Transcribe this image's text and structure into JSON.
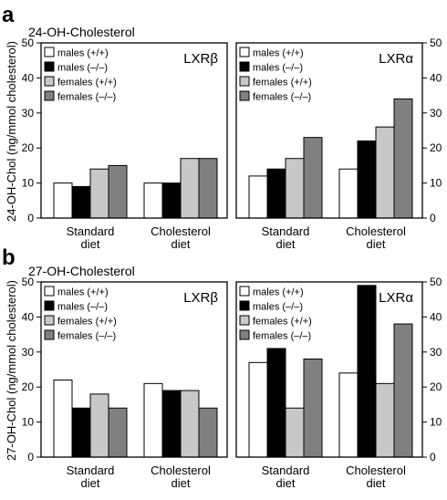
{
  "figure": {
    "panel_letters": [
      "a",
      "b"
    ],
    "titles": [
      "24-OH-Cholesterol",
      "27-OH-Cholesterol"
    ],
    "ylabels": [
      "24-OH-Chol (ng/mmol cholesterol)",
      "27-OH-Chol (ng/mmol cholesterol)"
    ]
  },
  "colors": {
    "males_wt": "#ffffff",
    "males_ko": "#000000",
    "females_wt": "#c8c8c8",
    "females_ko": "#808080"
  },
  "chart_data": [
    {
      "type": "bar",
      "title": "24-OH-Cholesterol",
      "ylabel": "24-OH-Chol (ng/mmol cholesterol)",
      "panel_label": "LXRβ",
      "ylim": [
        0,
        50
      ],
      "yticks": [
        0,
        10,
        20,
        30,
        40,
        50
      ],
      "legend_position": "top-left",
      "categories": [
        [
          "Standard",
          "diet"
        ],
        [
          "Cholesterol",
          "diet"
        ]
      ],
      "series": [
        {
          "name": "males (+/+)",
          "color": "#ffffff",
          "values": [
            10,
            10
          ]
        },
        {
          "name": "males (–/–)",
          "color": "#000000",
          "values": [
            9,
            10
          ]
        },
        {
          "name": "females (+/+)",
          "color": "#c8c8c8",
          "values": [
            14,
            17
          ]
        },
        {
          "name": "females (–/–)",
          "color": "#808080",
          "values": [
            15,
            17
          ]
        }
      ]
    },
    {
      "type": "bar",
      "title": "24-OH-Cholesterol",
      "panel_label": "LXRα",
      "ylim": [
        0,
        50
      ],
      "yticks": [
        0,
        10,
        20,
        30,
        40,
        50
      ],
      "legend_position": "top-left",
      "categories": [
        [
          "Standard",
          "diet"
        ],
        [
          "Cholesterol",
          "diet"
        ]
      ],
      "series": [
        {
          "name": "males (+/+)",
          "color": "#ffffff",
          "values": [
            12,
            14
          ]
        },
        {
          "name": "males (–/–)",
          "color": "#000000",
          "values": [
            14,
            22
          ]
        },
        {
          "name": "females (+/+)",
          "color": "#c8c8c8",
          "values": [
            17,
            26
          ]
        },
        {
          "name": "females (–/–)",
          "color": "#808080",
          "values": [
            23,
            34
          ]
        }
      ]
    },
    {
      "type": "bar",
      "title": "27-OH-Cholesterol",
      "ylabel": "27-OH-Chol (ng/mmol cholesterol)",
      "panel_label": "LXRβ",
      "ylim": [
        0,
        50
      ],
      "yticks": [
        0,
        10,
        20,
        30,
        40,
        50
      ],
      "legend_position": "top-left",
      "categories": [
        [
          "Standard",
          "diet"
        ],
        [
          "Cholesterol",
          "diet"
        ]
      ],
      "series": [
        {
          "name": "males (+/+)",
          "color": "#ffffff",
          "values": [
            22,
            21
          ]
        },
        {
          "name": "males (–/–)",
          "color": "#000000",
          "values": [
            14,
            19
          ]
        },
        {
          "name": "females (+/+)",
          "color": "#c8c8c8",
          "values": [
            18,
            19
          ]
        },
        {
          "name": "females (–/–)",
          "color": "#808080",
          "values": [
            14,
            14
          ]
        }
      ]
    },
    {
      "type": "bar",
      "title": "27-OH-Cholesterol",
      "panel_label": "LXRα",
      "ylim": [
        0,
        50
      ],
      "yticks": [
        0,
        10,
        20,
        30,
        40,
        50
      ],
      "legend_position": "top-left",
      "categories": [
        [
          "Standard",
          "diet"
        ],
        [
          "Cholesterol",
          "diet"
        ]
      ],
      "series": [
        {
          "name": "males (+/+)",
          "color": "#ffffff",
          "values": [
            27,
            24
          ]
        },
        {
          "name": "males (–/–)",
          "color": "#000000",
          "values": [
            31,
            49
          ]
        },
        {
          "name": "females (+/+)",
          "color": "#c8c8c8",
          "values": [
            14,
            21
          ]
        },
        {
          "name": "females (–/–)",
          "color": "#808080",
          "values": [
            28,
            38
          ]
        }
      ]
    }
  ]
}
